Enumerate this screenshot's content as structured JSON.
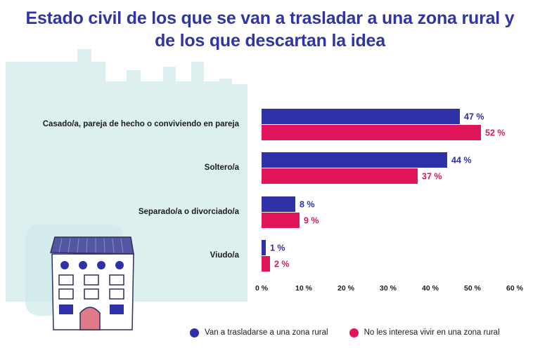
{
  "title": "Estado civil de los que se van a trasladar a una zona rural y de los que descartan la idea",
  "colors": {
    "series1": "#2e31a8",
    "series2": "#e0145b",
    "backdrop": "#ddf0ef",
    "title": "#2f35a4"
  },
  "chart_data": {
    "type": "bar",
    "orientation": "horizontal",
    "categories": [
      "Casado/a, pareja de hecho o conviviendo en pareja",
      "Soltero/a",
      "Separado/a o divorciado/a",
      "Viudo/a"
    ],
    "series": [
      {
        "name": "Van a trasladarse a una zona rural",
        "values": [
          47,
          44,
          8,
          1
        ],
        "labels": [
          "47 %",
          "44  %",
          "8 %",
          "1 %"
        ]
      },
      {
        "name": "No les interesa vivir en una zona rural",
        "values": [
          52,
          37,
          9,
          2
        ],
        "labels": [
          "52 %",
          "37 %",
          "9 %",
          "2 %"
        ]
      }
    ],
    "xlim": [
      0,
      60
    ],
    "ticks": [
      "0 %",
      "10 %",
      "20 %",
      "30 %",
      "40 %",
      "50 %",
      "60 %"
    ],
    "tick_values": [
      0,
      10,
      20,
      30,
      40,
      50,
      60
    ],
    "legend": "bottom",
    "grid": false
  }
}
